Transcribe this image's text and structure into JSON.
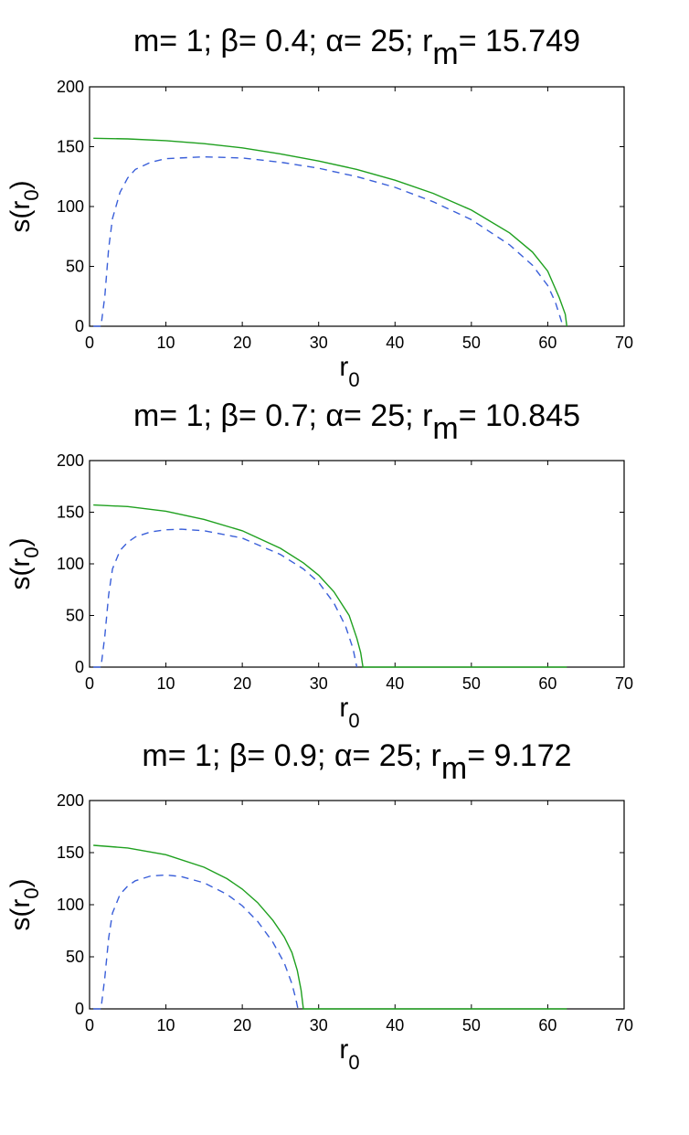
{
  "chart_data": [
    {
      "type": "line",
      "title": {
        "m": "m= 1;",
        "beta": "β= 0.4;",
        "alpha": "α= 25;",
        "rm_base": "r",
        "rm_sub": "m",
        "rm_value": "= 15.749"
      },
      "xlabel": {
        "base": "r",
        "sub": "0"
      },
      "ylabel": {
        "base": "s(r",
        "sub": "0",
        "close": ")"
      },
      "xlim": [
        0,
        70
      ],
      "ylim": [
        0,
        200
      ],
      "xticks": [
        0,
        10,
        20,
        30,
        40,
        50,
        60,
        70
      ],
      "yticks": [
        0,
        50,
        100,
        150,
        200
      ],
      "grid": false,
      "series": [
        {
          "color": "#1fa01f",
          "style": "solid",
          "x": [
            0.5,
            5,
            10,
            15,
            20,
            25,
            30,
            35,
            40,
            45,
            50,
            55,
            58,
            60,
            61.5,
            62.3,
            62.5
          ],
          "y": [
            157,
            156.5,
            155,
            152.5,
            149,
            144,
            138,
            131,
            122,
            111,
            97,
            78,
            62,
            46,
            24,
            10,
            0
          ]
        },
        {
          "color": "#3a5fd9",
          "style": "dashed",
          "x": [
            0.5,
            1.5,
            2,
            2.5,
            3,
            4,
            5,
            6,
            8,
            10,
            15,
            20,
            25,
            30,
            35,
            40,
            45,
            50,
            55,
            58,
            60,
            61,
            61.6,
            62
          ],
          "y": [
            0,
            0,
            25,
            65,
            90,
            112,
            124,
            131,
            137,
            140,
            141.5,
            140.5,
            137,
            132,
            125,
            116,
            104,
            89,
            68,
            51,
            34,
            20,
            8,
            0
          ]
        }
      ]
    },
    {
      "type": "line",
      "title": {
        "m": "m= 1;",
        "beta": "β= 0.7;",
        "alpha": "α= 25;",
        "rm_base": "r",
        "rm_sub": "m",
        "rm_value": "= 10.845"
      },
      "xlabel": {
        "base": "r",
        "sub": "0"
      },
      "ylabel": {
        "base": "s(r",
        "sub": "0",
        "close": ")"
      },
      "xlim": [
        0,
        70
      ],
      "ylim": [
        0,
        200
      ],
      "xticks": [
        0,
        10,
        20,
        30,
        40,
        50,
        60,
        70
      ],
      "yticks": [
        0,
        50,
        100,
        150,
        200
      ],
      "grid": false,
      "series": [
        {
          "color": "#1fa01f",
          "style": "solid",
          "x": [
            0.5,
            5,
            10,
            15,
            20,
            25,
            28,
            30,
            32,
            34,
            35,
            35.5,
            35.8,
            40,
            50,
            62.5
          ],
          "y": [
            157,
            155.5,
            151,
            143,
            132,
            115,
            101,
            89,
            73,
            50,
            28,
            14,
            0,
            0,
            0,
            0
          ]
        },
        {
          "color": "#3a5fd9",
          "style": "dashed",
          "x": [
            0.5,
            1.5,
            2,
            2.5,
            3,
            4,
            5,
            6,
            8,
            10,
            12,
            15,
            20,
            25,
            28,
            30,
            32,
            33.5,
            34.5,
            35
          ],
          "y": [
            0,
            0,
            30,
            70,
            95,
            113,
            121,
            126,
            131,
            133,
            133.5,
            132,
            125,
            109,
            95,
            82,
            62,
            40,
            18,
            0
          ]
        }
      ]
    },
    {
      "type": "line",
      "title": {
        "m": "m= 1;",
        "beta": "β= 0.9;",
        "alpha": "α= 25;",
        "rm_base": "r",
        "rm_sub": "m",
        "rm_value": "= 9.172"
      },
      "xlabel": {
        "base": "r",
        "sub": "0"
      },
      "ylabel": {
        "base": "s(r",
        "sub": "0",
        "close": ")"
      },
      "xlim": [
        0,
        70
      ],
      "ylim": [
        0,
        200
      ],
      "xticks": [
        0,
        10,
        20,
        30,
        40,
        50,
        60,
        70
      ],
      "yticks": [
        0,
        50,
        100,
        150,
        200
      ],
      "grid": false,
      "series": [
        {
          "color": "#1fa01f",
          "style": "solid",
          "x": [
            0.5,
            5,
            10,
            15,
            18,
            20,
            22,
            24,
            25.5,
            26.5,
            27.2,
            27.7,
            28,
            35,
            50,
            62.5
          ],
          "y": [
            157,
            154.5,
            148,
            136,
            125,
            115,
            102,
            85,
            69,
            54,
            37,
            18,
            0,
            0,
            0,
            0
          ]
        },
        {
          "color": "#3a5fd9",
          "style": "dashed",
          "x": [
            0.5,
            1.5,
            2,
            2.5,
            3,
            4,
            5,
            6,
            8,
            10,
            12,
            15,
            18,
            20,
            22,
            24,
            25.5,
            26.5,
            27,
            27.3
          ],
          "y": [
            0,
            0,
            30,
            68,
            92,
            110,
            118,
            123,
            127.5,
            128.5,
            127,
            121,
            110,
            99,
            84,
            64,
            44,
            24,
            10,
            0
          ]
        }
      ]
    }
  ]
}
